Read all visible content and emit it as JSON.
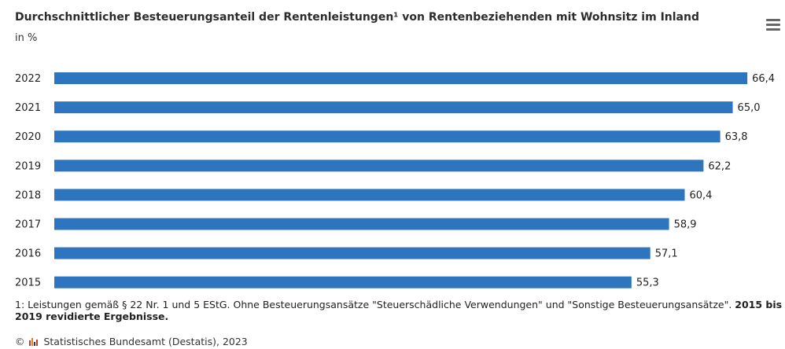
{
  "header": {
    "title": "Durchschnittlicher Besteuerungsanteil der Rentenleistungen¹ von Rentenbeziehenden mit Wohnsitz im Inland",
    "subtitle": "in %"
  },
  "chart_data": {
    "type": "bar",
    "orientation": "horizontal",
    "categories": [
      "2022",
      "2021",
      "2020",
      "2019",
      "2018",
      "2017",
      "2016",
      "2015"
    ],
    "values": [
      66.4,
      65.0,
      63.8,
      62.2,
      60.4,
      58.9,
      57.1,
      55.3
    ],
    "value_labels": [
      "66,4",
      "65,0",
      "63,8",
      "62,2",
      "60,4",
      "58,9",
      "57,1",
      "55,3"
    ],
    "bar_color": "#2e75c0",
    "grid": false,
    "legend": "none"
  },
  "footnote": {
    "text": "1: Leistungen gemäß § 22 Nr. 1 und 5 EStG. Ohne Besteuerungsansätze \"Steuerschädliche Verwendungen\" und \"Sonstige Besteuerungsansätze\". ",
    "bold_text": "2015 bis 2019 revidierte Ergebnisse."
  },
  "credits": {
    "copyright": "©",
    "source": "Statistisches Bundesamt (Destatis), 2023"
  },
  "icons": {
    "menu": "hamburger-menu-icon",
    "logo": "destatis-logo-icon"
  }
}
